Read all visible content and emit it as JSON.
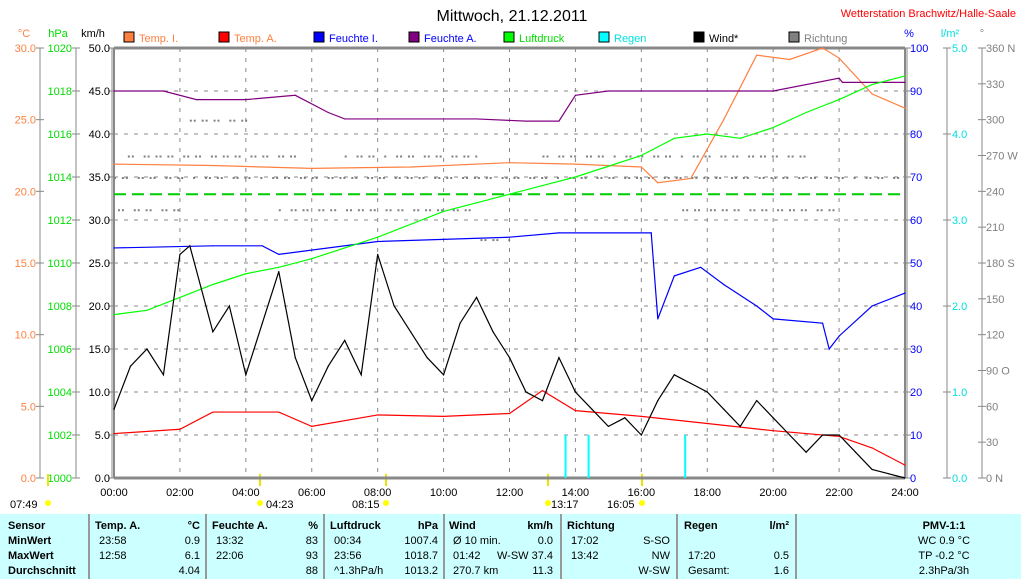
{
  "header": {
    "title": "Mittwoch, 21.12.2011",
    "station": "Wetterstation Brachwitz/Halle-Saale"
  },
  "legend": [
    {
      "label": "Temp. I.",
      "color": "#ff8040",
      "text_color": "#ff8040"
    },
    {
      "label": "Temp. A.",
      "color": "#ff0000",
      "text_color": "#ff8040"
    },
    {
      "label": "Feuchte I.",
      "color": "#0000ff",
      "text_color": "#0000ff"
    },
    {
      "label": "Feuchte A.",
      "color": "#800080",
      "text_color": "#0000ff"
    },
    {
      "label": "Luftdruck",
      "color": "#00ff00",
      "text_color": "#00dd00"
    },
    {
      "label": "Regen",
      "color": "#00ffff",
      "text_color": "#00e0e0"
    },
    {
      "label": "Wind*",
      "color": "#000000",
      "text_color": "#000000"
    },
    {
      "label": "Richtung",
      "color": "#808080",
      "text_color": "#808080"
    }
  ],
  "chart_data": {
    "type": "line",
    "title": "Mittwoch, 21.12.2011",
    "xlabel": "",
    "x_range": [
      0,
      24
    ],
    "x_ticks": [
      "00:00",
      "02:00",
      "04:00",
      "06:00",
      "08:00",
      "10:00",
      "12:00",
      "14:00",
      "16:00",
      "18:00",
      "20:00",
      "22:00",
      "24:00"
    ],
    "axes": {
      "temp": {
        "unit": "°C",
        "range": [
          0,
          30
        ],
        "ticks": [
          "0.0",
          "5.0",
          "10.0",
          "15.0",
          "20.0",
          "25.0",
          "30.0"
        ],
        "color": "#ff8040"
      },
      "pressure": {
        "unit": "hPa",
        "range": [
          1000,
          1020
        ],
        "ticks": [
          "1000",
          "1002",
          "1004",
          "1006",
          "1008",
          "1010",
          "1012",
          "1014",
          "1016",
          "1018",
          "1020"
        ],
        "color": "#00dd00"
      },
      "wind": {
        "unit": "km/h",
        "range": [
          0,
          50
        ],
        "ticks": [
          "0.0",
          "5.0",
          "10.0",
          "15.0",
          "20.0",
          "25.0",
          "30.0",
          "35.0",
          "40.0",
          "45.0",
          "50.0"
        ],
        "color": "#000000"
      },
      "humidity": {
        "unit": "%",
        "range": [
          0,
          100
        ],
        "ticks": [
          "0",
          "10",
          "20",
          "30",
          "40",
          "50",
          "60",
          "70",
          "80",
          "90",
          "100"
        ],
        "color": "#0000ff"
      },
      "rain": {
        "unit": "l/m²",
        "range": [
          0,
          5
        ],
        "ticks": [
          "0.0",
          "1.0",
          "2.0",
          "3.0",
          "4.0",
          "5.0"
        ],
        "color": "#00e0e0"
      },
      "direction": {
        "unit": "°",
        "range": [
          0,
          360
        ],
        "ticks": [
          "0 N",
          "30",
          "60",
          "90 O",
          "120",
          "150",
          "180 S",
          "210",
          "240",
          "270 W",
          "300",
          "330",
          "360 N"
        ],
        "color": "#808080"
      }
    },
    "series": [
      {
        "name": "Temp. I.",
        "axis": "temp",
        "color": "#ff8040",
        "x": [
          0,
          3,
          6,
          9,
          12,
          14,
          16,
          16.5,
          17.5,
          18.5,
          19.5,
          20.5,
          21.5,
          22,
          23,
          24
        ],
        "y": [
          21.9,
          21.8,
          21.6,
          21.7,
          22,
          21.9,
          21.7,
          20.6,
          20.9,
          25,
          29.5,
          29.2,
          30,
          29.3,
          26.8,
          25.8
        ]
      },
      {
        "name": "Temp. A.",
        "axis": "temp",
        "color": "#ff0000",
        "x": [
          0,
          2,
          3,
          5,
          6,
          8,
          10,
          12,
          13,
          14,
          16,
          18,
          20,
          21,
          22,
          23,
          24
        ],
        "y": [
          3.1,
          3.4,
          4.6,
          4.6,
          3.6,
          4.4,
          4.3,
          4.5,
          6.1,
          4.7,
          4.3,
          3.8,
          3.3,
          3.1,
          2.9,
          2.1,
          0.9
        ]
      },
      {
        "name": "Feuchte I.",
        "axis": "humidity",
        "color": "#0000ff",
        "x": [
          0,
          3,
          4.5,
          5,
          8,
          12,
          13.5,
          16.3,
          16.5,
          17,
          17.8,
          18.5,
          19.5,
          20,
          21.5,
          21.7,
          22,
          23,
          24
        ],
        "y": [
          53.5,
          54,
          54,
          52,
          55,
          56,
          57,
          57,
          37,
          47,
          49,
          45,
          40,
          37,
          36,
          30,
          33,
          40,
          43
        ]
      },
      {
        "name": "Feuchte A.",
        "axis": "humidity",
        "color": "#800080",
        "x": [
          0,
          1.5,
          2.5,
          4,
          5.5,
          6.5,
          7,
          9,
          11,
          12.5,
          13.5,
          14,
          15,
          17,
          19,
          20,
          22,
          22.1,
          24
        ],
        "y": [
          90,
          90,
          88,
          88,
          89,
          85,
          83.5,
          83.5,
          83.5,
          83,
          83,
          89,
          90,
          90,
          90,
          90,
          93,
          92,
          92
        ]
      },
      {
        "name": "Luftdruck",
        "axis": "pressure",
        "color": "#00ff00",
        "x": [
          0,
          1,
          2,
          3,
          4,
          5,
          6,
          8,
          10,
          11,
          12,
          13,
          14,
          15,
          16,
          17,
          18,
          19,
          20,
          21,
          22,
          23,
          24
        ],
        "y": [
          1007.6,
          1007.8,
          1008.4,
          1009,
          1009.5,
          1009.8,
          1010.2,
          1011.2,
          1012.4,
          1012.8,
          1013.2,
          1013.6,
          1014,
          1014.5,
          1015,
          1015.8,
          1016,
          1015.8,
          1016.3,
          1017,
          1017.6,
          1018.3,
          1018.7
        ]
      },
      {
        "name": "Wind*",
        "axis": "wind",
        "color": "#000000",
        "x": [
          0,
          0.5,
          1,
          1.5,
          2,
          2.3,
          3,
          3.5,
          4,
          4.5,
          5,
          5.5,
          6,
          6.5,
          7,
          7.5,
          8,
          8.5,
          9,
          9.5,
          10,
          10.5,
          11,
          11.5,
          12,
          12.5,
          13,
          13.5,
          14,
          14.5,
          15,
          15.5,
          16,
          16.5,
          17,
          17.5,
          18,
          18.5,
          19,
          19.5,
          20,
          20.5,
          21,
          21.5,
          22,
          22.5,
          23,
          23.5,
          24
        ],
        "y": [
          8,
          13,
          15,
          12,
          26,
          27,
          17,
          20,
          12,
          18,
          24,
          14,
          9,
          13,
          16,
          12,
          26,
          20,
          17,
          14,
          12,
          18,
          21,
          17,
          14,
          10,
          9,
          14,
          10,
          8,
          6,
          7,
          5,
          9,
          12,
          11,
          10,
          8,
          6,
          9,
          7,
          5,
          3,
          5,
          5,
          3,
          1,
          0.5,
          0
        ]
      }
    ],
    "rain_bars": {
      "axis": "rain",
      "x": [
        13.7,
        14.4,
        17.33
      ],
      "y": [
        0.5,
        0.5,
        0.5
      ]
    },
    "pressure_average": 1013.2,
    "direction_dots": {
      "axis": "direction",
      "bands": [
        {
          "deg": 300,
          "from": 2.3,
          "to": 4
        },
        {
          "deg": 270,
          "from": 0.3,
          "to": 5.5
        },
        {
          "deg": 270,
          "from": 7,
          "to": 11
        },
        {
          "deg": 270,
          "from": 13,
          "to": 21
        },
        {
          "deg": 252,
          "from": 0,
          "to": 24
        },
        {
          "deg": 225,
          "from": 0,
          "to": 2
        },
        {
          "deg": 225,
          "from": 5,
          "to": 11
        },
        {
          "deg": 225,
          "from": 17,
          "to": 22
        },
        {
          "deg": 200,
          "from": 11,
          "to": 12
        }
      ]
    }
  },
  "astro": [
    {
      "time": "07:49",
      "icon": "sunrise"
    },
    {
      "time": "04:23",
      "icon": "moonrise"
    },
    {
      "time": "08:15",
      "icon": "sun"
    },
    {
      "time": "13:17",
      "icon": "moon"
    },
    {
      "time": "16:05",
      "icon": "sunset"
    }
  ],
  "table": {
    "sensor": [
      "Sensor",
      "MinWert",
      "MaxWert",
      "Durchschnitt"
    ],
    "temp": {
      "head": "Temp. A.",
      "unit": "°C",
      "rows": [
        [
          "23:58",
          "0.9"
        ],
        [
          "12:58",
          "6.1"
        ],
        [
          "",
          "4.04"
        ]
      ]
    },
    "hum": {
      "head": "Feuchte A.",
      "unit": "%",
      "rows": [
        [
          "13:32",
          "83"
        ],
        [
          "22:06",
          "93"
        ],
        [
          "",
          "88"
        ]
      ]
    },
    "press": {
      "head": "Luftdruck",
      "unit": "hPa",
      "rows": [
        [
          "00:34",
          "1007.4"
        ],
        [
          "23:56",
          "1018.7"
        ],
        [
          "^1.3hPa/h",
          "1013.2"
        ]
      ]
    },
    "wind": {
      "head": "Wind",
      "unit": "km/h",
      "rows": [
        [
          "Ø 10 min.",
          "0.0"
        ],
        [
          "01:42",
          "W-SW 37.4"
        ],
        [
          "270.7 km",
          "11.3"
        ]
      ]
    },
    "dir": {
      "head": "Richtung",
      "rows": [
        [
          "17:02",
          "S-SO"
        ],
        [
          "13:42",
          "NW"
        ],
        [
          "",
          "W-SW"
        ]
      ]
    },
    "rain": {
      "head": "Regen",
      "unit": "l/m²",
      "rows": [
        [
          "",
          ""
        ],
        [
          "17:20",
          "0.5"
        ],
        [
          "Gesamt:",
          "1.6"
        ]
      ]
    },
    "pmv": {
      "head": "PMV-1:1",
      "rows": [
        "WC 0.9 °C",
        "TP -0.2 °C",
        "2.3hPa/3h"
      ]
    }
  }
}
